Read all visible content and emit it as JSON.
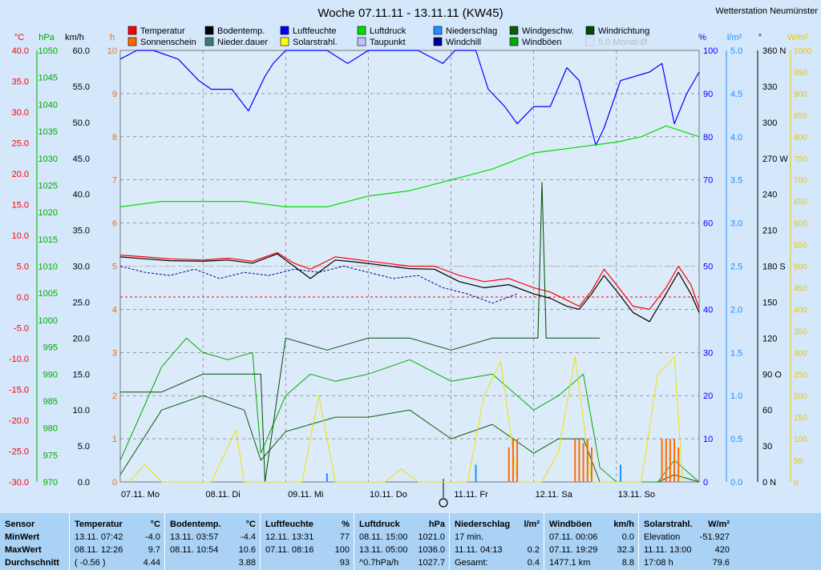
{
  "header": {
    "title": "Woche 07.11.11 - 13.11.11 (KW45)",
    "station": "Wetterstation Neumünster"
  },
  "legend": [
    {
      "label": "Temperatur",
      "color": "#ff0000",
      "box": true
    },
    {
      "label": "Sonnenschein",
      "color": "#ff6a00",
      "box": true
    },
    {
      "label": "Bodentemp.",
      "color": "#000000",
      "box": true
    },
    {
      "label": "Nieder.dauer",
      "color": "#3d7a7a",
      "box": true
    },
    {
      "label": "Luftfeuchte",
      "color": "#0000ff",
      "box": true
    },
    {
      "label": "Solarstrahl.",
      "color": "#ffff00",
      "box": true
    },
    {
      "label": "Luftdruck",
      "color": "#00dd00",
      "box": true
    },
    {
      "label": "Taupunkt",
      "color": "#c0c0ff",
      "box": true
    },
    {
      "label": "Niederschlag",
      "color": "#1e90ff",
      "box": true
    },
    {
      "label": "Windchill",
      "color": "#000090",
      "box": true
    },
    {
      "label": "Windgeschw.",
      "color": "#0b5d0b",
      "box": true
    },
    {
      "label": "Windböen",
      "color": "#00aa00",
      "box": true
    },
    {
      "label": "Windrichtung",
      "color": "#004d00",
      "box": true
    },
    {
      "label": "5.0 Monat-Ø",
      "color": "#cccccc",
      "box": true
    }
  ],
  "axes": {
    "temp": {
      "unit": "°C",
      "ticks": [
        "40.0",
        "35.0",
        "30.0",
        "25.0",
        "20.0",
        "15.0",
        "10.0",
        "5.0",
        "0.0",
        "-5.0",
        "-10.0",
        "-15.0",
        "-20.0",
        "-25.0",
        "-30.0"
      ],
      "color": "#ff0000"
    },
    "pressure": {
      "unit": "hPa",
      "ticks": [
        "1050",
        "1045",
        "1040",
        "1035",
        "1030",
        "1025",
        "1020",
        "1015",
        "1010",
        "1005",
        "1000",
        "995",
        "990",
        "985",
        "980",
        "975",
        "970"
      ],
      "color": "#00aa00"
    },
    "wind": {
      "unit": "km/h",
      "ticks": [
        "60.0",
        "55.0",
        "50.0",
        "45.0",
        "40.0",
        "35.0",
        "30.0",
        "25.0",
        "20.0",
        "15.0",
        "10.0",
        "5.0",
        "0.0"
      ],
      "color": "#000000"
    },
    "hours": {
      "unit": "h",
      "ticks": [
        "10",
        "9",
        "8",
        "7",
        "6",
        "5",
        "4",
        "3",
        "2",
        "1",
        "0"
      ],
      "color": "#ff6a00"
    },
    "humidity": {
      "unit": "%",
      "ticks": [
        "100",
        "90",
        "80",
        "70",
        "60",
        "50",
        "40",
        "30",
        "20",
        "10",
        "0"
      ],
      "color": "#0000ff"
    },
    "rain": {
      "unit": "l/m²",
      "ticks": [
        "5.0",
        "4.5",
        "4.0",
        "3.5",
        "3.0",
        "2.5",
        "2.0",
        "1.5",
        "1.0",
        "0.5",
        "0.0"
      ],
      "color": "#1e90ff"
    },
    "direction": {
      "unit": "°",
      "ticks": [
        "360 N",
        "330",
        "300",
        "270 W",
        "240",
        "210",
        "180 S",
        "150",
        "120",
        "90 O",
        "60",
        "30",
        "0 N"
      ],
      "color": "#000000"
    },
    "solar": {
      "unit": "W/m²",
      "ticks": [
        "1000",
        "950",
        "900",
        "850",
        "800",
        "750",
        "700",
        "650",
        "600",
        "550",
        "500",
        "450",
        "400",
        "350",
        "300",
        "250",
        "200",
        "150",
        "100",
        "50",
        "0"
      ],
      "color": "#e6c800"
    },
    "days": [
      "07.11. Mo",
      "08.11. Di",
      "09.11. Mi",
      "10.11. Do",
      "11.11. Fr",
      "12.11. Sa",
      "13.11. So"
    ]
  },
  "chart_data": {
    "type": "line",
    "title": "Woche 07.11.11 - 13.11.11 (KW45)",
    "x_unit": "day (0 = 07.11. 00:00, 7 = 14.11. 00:00)",
    "series": [
      {
        "name": "Temperatur",
        "unit": "°C",
        "x": [
          0,
          0.3,
          0.6,
          1.0,
          1.3,
          1.6,
          1.9,
          2.1,
          2.3,
          2.6,
          2.9,
          3.2,
          3.5,
          3.8,
          4.1,
          4.4,
          4.7,
          5.0,
          5.2,
          5.4,
          5.55,
          5.7,
          5.85,
          6.0,
          6.2,
          6.4,
          6.6,
          6.75,
          6.9,
          7.0
        ],
        "y": [
          6.8,
          6.5,
          6.2,
          6.0,
          6.3,
          5.8,
          7.2,
          5.5,
          4.5,
          6.5,
          6.0,
          5.5,
          5.0,
          5.0,
          3.5,
          2.5,
          3.0,
          1.5,
          0.8,
          -0.5,
          -1.5,
          1.0,
          4.5,
          2.0,
          -1.5,
          -2.0,
          1.5,
          5.0,
          2.0,
          -1.8
        ]
      },
      {
        "name": "Bodentemp.",
        "unit": "°C",
        "x": [
          0,
          0.3,
          0.6,
          1.0,
          1.3,
          1.6,
          1.9,
          2.1,
          2.3,
          2.6,
          2.9,
          3.2,
          3.5,
          3.8,
          4.1,
          4.4,
          4.7,
          5.0,
          5.2,
          5.4,
          5.55,
          5.7,
          5.85,
          6.0,
          6.2,
          6.4,
          6.6,
          6.75,
          6.9,
          7.0
        ],
        "y": [
          6.5,
          6.2,
          5.9,
          5.8,
          6.0,
          5.5,
          7.0,
          5.0,
          3.0,
          6.0,
          5.6,
          5.1,
          4.6,
          4.5,
          2.5,
          1.5,
          2.0,
          0.5,
          -0.2,
          -1.5,
          -2.0,
          0.5,
          3.5,
          1.0,
          -2.5,
          -4.0,
          0.5,
          4.0,
          0.5,
          -2.5
        ]
      },
      {
        "name": "Windchill",
        "unit": "°C",
        "x": [
          0,
          0.3,
          0.6,
          0.9,
          1.2,
          1.5,
          1.8,
          2.1,
          2.4,
          2.7,
          3.0,
          3.3,
          3.6,
          3.9,
          4.2,
          4.5,
          4.8
        ],
        "y": [
          5.0,
          4.0,
          3.5,
          4.5,
          3.0,
          4.0,
          3.5,
          4.5,
          4.0,
          5.0,
          4.0,
          3.0,
          3.5,
          1.5,
          0.5,
          -1.0,
          0.5
        ]
      },
      {
        "name": "Luftfeuchte",
        "unit": "%",
        "x": [
          0,
          0.2,
          0.4,
          0.7,
          0.95,
          1.1,
          1.35,
          1.55,
          1.75,
          1.85,
          2.0,
          2.2,
          2.5,
          2.75,
          3.0,
          3.3,
          3.6,
          3.9,
          4.05,
          4.3,
          4.45,
          4.65,
          4.8,
          5.0,
          5.2,
          5.4,
          5.55,
          5.75,
          5.85,
          6.05,
          6.4,
          6.55,
          6.7,
          6.85,
          7.0
        ],
        "y": [
          98,
          100,
          100,
          98,
          93,
          91,
          91,
          86,
          94,
          97,
          100,
          100,
          100,
          97,
          100,
          100,
          100,
          97,
          100,
          100,
          91,
          87,
          83,
          87,
          87,
          96,
          93,
          78,
          82,
          93,
          95,
          97,
          83,
          90,
          95
        ]
      },
      {
        "name": "Luftdruck",
        "unit": "hPa",
        "x": [
          0,
          0.5,
          1.0,
          1.5,
          2.0,
          2.5,
          3.0,
          3.5,
          4.0,
          4.5,
          5.0,
          5.5,
          6.0,
          6.3,
          6.6,
          6.8,
          7.0
        ],
        "y": [
          1021,
          1022,
          1022,
          1022,
          1021,
          1021,
          1023,
          1024,
          1026,
          1028,
          1031,
          1032,
          1033,
          1034,
          1036,
          1035,
          1034
        ]
      },
      {
        "name": "Windgeschw.",
        "unit": "km/h",
        "x": [
          0,
          0.5,
          1.0,
          1.5,
          1.7,
          2.0,
          2.3,
          2.6,
          3.0,
          3.5,
          4.0,
          4.5,
          5.0,
          5.3,
          5.6,
          5.8,
          6.0,
          6.2,
          6.5,
          6.7,
          7.0
        ],
        "y": [
          1,
          10,
          12,
          10,
          3,
          7,
          8,
          9,
          9,
          10,
          6,
          8,
          4,
          6,
          6,
          0,
          0,
          0,
          0,
          1,
          0
        ]
      },
      {
        "name": "Windböen",
        "unit": "km/h",
        "x": [
          0,
          0.5,
          0.8,
          1.0,
          1.3,
          1.6,
          1.7,
          2.0,
          2.3,
          2.6,
          3.0,
          3.5,
          4.0,
          4.5,
          5.0,
          5.3,
          5.6,
          5.8,
          6.0,
          6.2,
          6.5,
          6.7,
          7.0
        ],
        "y": [
          3,
          16,
          20,
          18,
          17,
          18,
          4,
          12,
          15,
          14,
          15,
          17,
          14,
          15,
          10,
          12,
          15,
          2,
          0,
          0,
          0,
          3,
          0
        ]
      },
      {
        "name": "Windrichtung",
        "unit": "°",
        "x": [
          0,
          0.5,
          1.0,
          1.5,
          1.7,
          1.75,
          2.0,
          2.5,
          3.0,
          3.5,
          4.0,
          4.5,
          4.7,
          5.05,
          5.1,
          5.15,
          5.5,
          5.8
        ],
        "y": [
          75,
          75,
          90,
          90,
          90,
          0,
          120,
          110,
          120,
          120,
          110,
          120,
          120,
          120,
          250,
          120,
          120,
          120
        ]
      },
      {
        "name": "Solarstrahl.",
        "unit": "W/m²",
        "x": [
          0.1,
          0.3,
          0.5,
          1.1,
          1.4,
          1.5,
          2.2,
          2.4,
          2.6,
          3.2,
          3.4,
          3.6,
          4.2,
          4.4,
          4.6,
          4.8,
          5.1,
          5.3,
          5.5,
          5.7,
          6.3,
          6.5,
          6.7,
          6.8
        ],
        "y": [
          0,
          40,
          0,
          0,
          120,
          0,
          0,
          200,
          0,
          0,
          30,
          0,
          0,
          200,
          280,
          0,
          0,
          70,
          290,
          0,
          0,
          250,
          290,
          0
        ]
      },
      {
        "name": "Sonnenschein",
        "unit": "h",
        "x": [
          4.7,
          4.75,
          4.8,
          5.5,
          5.55,
          5.6,
          5.65,
          5.7,
          6.55,
          6.6,
          6.65,
          6.7,
          6.75
        ],
        "y": [
          0.8,
          1.0,
          1.0,
          1.0,
          1.0,
          0.9,
          1.0,
          0.8,
          1.0,
          1.0,
          1.0,
          1.0,
          0.8
        ]
      },
      {
        "name": "Niederschlag",
        "unit": "l/m²",
        "x": [
          2.5,
          4.3,
          6.05
        ],
        "y": [
          0.1,
          0.2,
          0.2
        ]
      }
    ],
    "reference_lines": [
      {
        "axis": "temp",
        "value": 0.0,
        "color": "#ff0000"
      },
      {
        "axis": "temp",
        "value": 5.0,
        "color": "#bbbbbb"
      }
    ],
    "xlabel": "",
    "ylabel": "",
    "grid": true,
    "legend_placement": "top"
  },
  "stats": {
    "row_labels": [
      "Sensor",
      "MinWert",
      "MaxWert",
      "Durchschnitt"
    ],
    "panels": [
      {
        "name": "Temperatur",
        "unit": "°C",
        "rows": [
          [
            "13.11.  07:42",
            "-4.0"
          ],
          [
            "08.11.  12:26",
            "9.7"
          ],
          [
            "( -0.56 )",
            "4.44"
          ]
        ]
      },
      {
        "name": "Bodentemp.",
        "unit": "°C",
        "rows": [
          [
            "13.11.  03:57",
            "-4.4"
          ],
          [
            "08.11.  10:54",
            "10.6"
          ],
          [
            "",
            "3.88"
          ]
        ]
      },
      {
        "name": "Luftfeuchte",
        "unit": "%",
        "rows": [
          [
            "12.11.  13:31",
            "77"
          ],
          [
            "07.11.  08:16",
            "100"
          ],
          [
            "",
            "93"
          ]
        ]
      },
      {
        "name": "Luftdruck",
        "unit": "hPa",
        "rows": [
          [
            "08.11.  15:00",
            "1021.0"
          ],
          [
            "13.11.  05:00",
            "1036.0"
          ],
          [
            "^0.7hPa/h",
            "1027.7"
          ]
        ]
      },
      {
        "name": "Niederschlag",
        "unit": "l/m²",
        "rows": [
          [
            "17 min.",
            ""
          ],
          [
            "11.11.  04:13",
            "0.2"
          ],
          [
            "Gesamt:",
            "0.4"
          ]
        ]
      },
      {
        "name": "Windböen",
        "unit": "km/h",
        "rows": [
          [
            "07.11.  00:06",
            "0.0"
          ],
          [
            "07.11.  19:29",
            "32.3"
          ],
          [
            "1477.1 km",
            "8.8"
          ]
        ]
      },
      {
        "name": "Solarstrahl.",
        "unit": "W/m²",
        "rows": [
          [
            "Elevation",
            "-51.927"
          ],
          [
            "11.11.  13:00",
            "420"
          ],
          [
            "17:08 h",
            "79.6"
          ]
        ]
      }
    ]
  }
}
